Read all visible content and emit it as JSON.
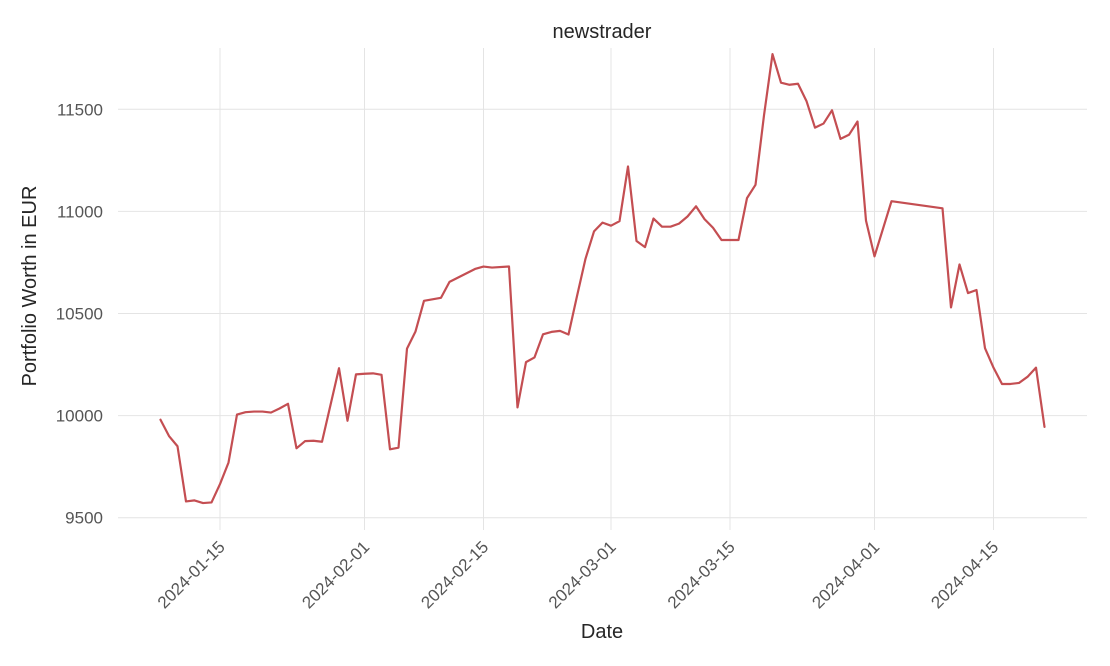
{
  "chart_data": {
    "type": "line",
    "title": "newstrader",
    "xlabel": "Date",
    "ylabel": "Portfolio Worth in EUR",
    "x_tick_labels": [
      "2024-01-15",
      "2024-02-01",
      "2024-02-15",
      "2024-03-01",
      "2024-03-15",
      "2024-04-01",
      "2024-04-15"
    ],
    "y_tick_labels": [
      "9500",
      "10000",
      "10500",
      "11000",
      "11500"
    ],
    "y_ticks": [
      9500,
      10000,
      10500,
      11000,
      11500
    ],
    "xlim": [
      "2024-01-03",
      "2024-04-26"
    ],
    "ylim": [
      9440,
      11800
    ],
    "grid": true,
    "series": [
      {
        "color": "#c44e52",
        "points": [
          [
            "2024-01-08",
            9980
          ],
          [
            "2024-01-09",
            9900
          ],
          [
            "2024-01-10",
            9850
          ],
          [
            "2024-01-11",
            9580
          ],
          [
            "2024-01-12",
            9585
          ],
          [
            "2024-01-13",
            9572
          ],
          [
            "2024-01-14",
            9575
          ],
          [
            "2024-01-15",
            9665
          ],
          [
            "2024-01-16",
            9770
          ],
          [
            "2024-01-17",
            10005
          ],
          [
            "2024-01-18",
            10017
          ],
          [
            "2024-01-19",
            10020
          ],
          [
            "2024-01-20",
            10020
          ],
          [
            "2024-01-21",
            10015
          ],
          [
            "2024-01-22",
            10035
          ],
          [
            "2024-01-23",
            10058
          ],
          [
            "2024-01-24",
            9840
          ],
          [
            "2024-01-25",
            9875
          ],
          [
            "2024-01-26",
            9877
          ],
          [
            "2024-01-27",
            9872
          ],
          [
            "2024-01-29",
            10232
          ],
          [
            "2024-01-30",
            9975
          ],
          [
            "2024-01-31",
            10202
          ],
          [
            "2024-02-01",
            10205
          ],
          [
            "2024-02-02",
            10207
          ],
          [
            "2024-02-03",
            10200
          ],
          [
            "2024-02-04",
            9835
          ],
          [
            "2024-02-05",
            9843
          ],
          [
            "2024-02-06",
            10328
          ],
          [
            "2024-02-07",
            10412
          ],
          [
            "2024-02-08",
            10562
          ],
          [
            "2024-02-10",
            10577
          ],
          [
            "2024-02-11",
            10655
          ],
          [
            "2024-02-14",
            10718
          ],
          [
            "2024-02-15",
            10730
          ],
          [
            "2024-02-16",
            10725
          ],
          [
            "2024-02-18",
            10730
          ],
          [
            "2024-02-19",
            10040
          ],
          [
            "2024-02-20",
            10262
          ],
          [
            "2024-02-21",
            10285
          ],
          [
            "2024-02-22",
            10398
          ],
          [
            "2024-02-23",
            10410
          ],
          [
            "2024-02-24",
            10415
          ],
          [
            "2024-02-25",
            10397
          ],
          [
            "2024-02-26",
            10585
          ],
          [
            "2024-02-27",
            10768
          ],
          [
            "2024-02-28",
            10902
          ],
          [
            "2024-02-29",
            10945
          ],
          [
            "2024-03-01",
            10930
          ],
          [
            "2024-03-02",
            10952
          ],
          [
            "2024-03-03",
            11220
          ],
          [
            "2024-03-04",
            10855
          ],
          [
            "2024-03-05",
            10825
          ],
          [
            "2024-03-06",
            10965
          ],
          [
            "2024-03-07",
            10925
          ],
          [
            "2024-03-08",
            10925
          ],
          [
            "2024-03-09",
            10940
          ],
          [
            "2024-03-10",
            10975
          ],
          [
            "2024-03-11",
            11025
          ],
          [
            "2024-03-12",
            10962
          ],
          [
            "2024-03-13",
            10920
          ],
          [
            "2024-03-14",
            10860
          ],
          [
            "2024-03-15",
            10860
          ],
          [
            "2024-03-16",
            10860
          ],
          [
            "2024-03-17",
            11065
          ],
          [
            "2024-03-18",
            11130
          ],
          [
            "2024-03-19",
            11470
          ],
          [
            "2024-03-20",
            11770
          ],
          [
            "2024-03-21",
            11630
          ],
          [
            "2024-03-22",
            11620
          ],
          [
            "2024-03-23",
            11625
          ],
          [
            "2024-03-24",
            11540
          ],
          [
            "2024-03-25",
            11410
          ],
          [
            "2024-03-26",
            11430
          ],
          [
            "2024-03-27",
            11495
          ],
          [
            "2024-03-28",
            11355
          ],
          [
            "2024-03-29",
            11375
          ],
          [
            "2024-03-30",
            11440
          ],
          [
            "2024-03-31",
            10955
          ],
          [
            "2024-04-01",
            10780
          ],
          [
            "2024-04-03",
            11050
          ],
          [
            "2024-04-09",
            11015
          ],
          [
            "2024-04-10",
            10530
          ],
          [
            "2024-04-11",
            10740
          ],
          [
            "2024-04-12",
            10600
          ],
          [
            "2024-04-13",
            10615
          ],
          [
            "2024-04-14",
            10330
          ],
          [
            "2024-04-15",
            10235
          ],
          [
            "2024-04-16",
            10155
          ],
          [
            "2024-04-17",
            10155
          ],
          [
            "2024-04-18",
            10160
          ],
          [
            "2024-04-19",
            10190
          ],
          [
            "2024-04-20",
            10235
          ],
          [
            "2024-04-21",
            9945
          ]
        ]
      }
    ]
  }
}
